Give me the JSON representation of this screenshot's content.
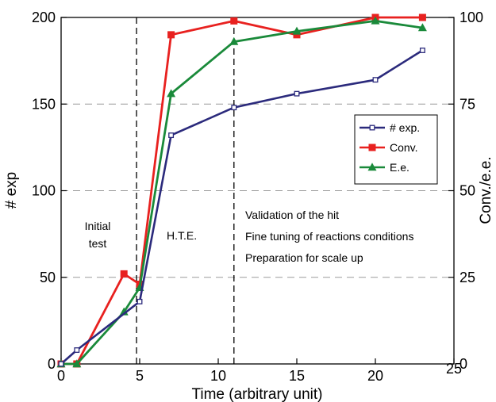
{
  "chart_data": {
    "type": "line",
    "xlabel": "Time (arbitrary unit)",
    "ylabel": "# exp",
    "ylabel_right": "Conv./e.e.",
    "xlim": [
      0,
      25
    ],
    "ylim": [
      0,
      200
    ],
    "ylim_right": [
      0,
      100
    ],
    "x_ticks": [
      "0",
      "5",
      "10",
      "15",
      "20",
      "25"
    ],
    "y_ticks": [
      "0",
      "50",
      "100",
      "150",
      "200"
    ],
    "y_ticks_right": [
      "0",
      "25",
      "50",
      "75",
      "100"
    ],
    "grid": "horizontal dashed",
    "legend_position": "right",
    "series": [
      {
        "name": "# exp.",
        "axis": "left",
        "color": "#2b2a7c",
        "marker": "open-square",
        "x": [
          0,
          1,
          5,
          7,
          11,
          15,
          20,
          23
        ],
        "values": [
          0,
          8,
          36,
          132,
          148,
          156,
          164,
          181
        ]
      },
      {
        "name": "Conv.",
        "axis": "right",
        "color": "#e8211f",
        "marker": "square",
        "x": [
          0,
          1,
          4,
          5,
          7,
          11,
          15,
          20,
          23
        ],
        "values": [
          0,
          0,
          26,
          23,
          95,
          99,
          95,
          100,
          100
        ]
      },
      {
        "name": "E.e.",
        "axis": "right",
        "color": "#1a8a3a",
        "marker": "triangle",
        "x": [
          0,
          1,
          4,
          5,
          7,
          11,
          15,
          20,
          23
        ],
        "values": [
          0,
          0,
          15,
          22,
          78,
          93,
          96,
          99,
          97
        ]
      }
    ],
    "vlines": [
      4.8,
      11
    ],
    "annotations": [
      {
        "id": "initial1",
        "text": "Initial"
      },
      {
        "id": "initial2",
        "text": "test"
      },
      {
        "id": "hte",
        "text": "H.T.E."
      },
      {
        "id": "val",
        "text": "Validation of the hit"
      },
      {
        "id": "fine",
        "text": "Fine tuning of reactions conditions"
      },
      {
        "id": "prep",
        "text": "Preparation for scale up"
      }
    ]
  }
}
